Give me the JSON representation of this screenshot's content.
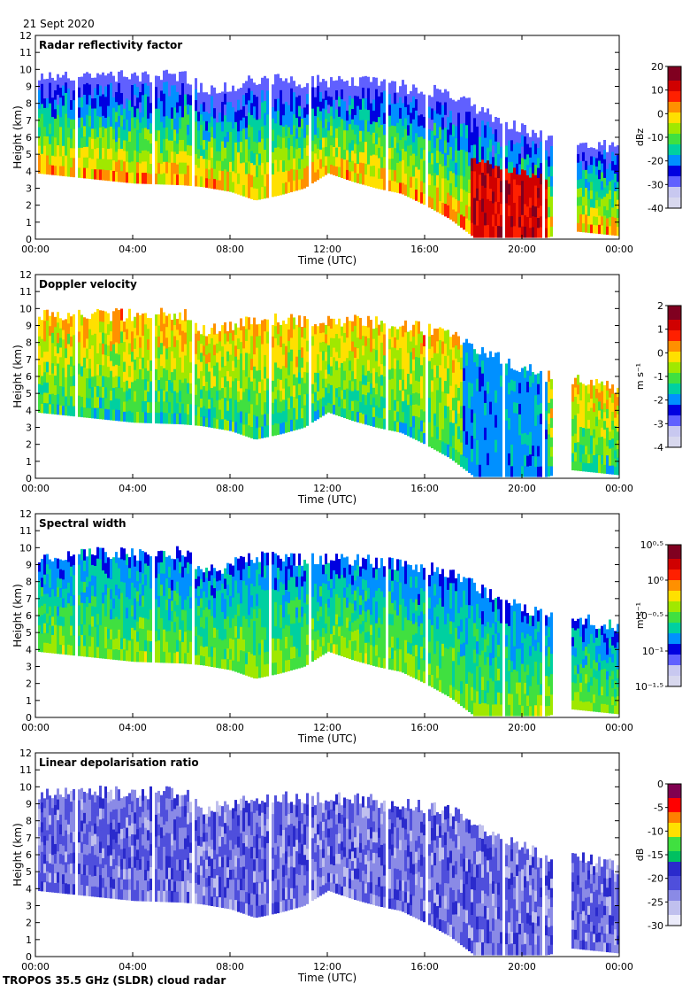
{
  "date": "21 Sept 2020",
  "footer": "TROPOS 35.5 GHz (SLDR) cloud radar",
  "colors": {
    "axis": "#000000",
    "jet": [
      "#d8d8ee",
      "#c8c8f0",
      "#6060ff",
      "#0000e0",
      "#0090ff",
      "#00d0a0",
      "#40e040",
      "#a0e800",
      "#ffe000",
      "#ff9000",
      "#ff2000",
      "#d00000",
      "#800020"
    ],
    "ldr": [
      "#ebebfa",
      "#c0c0ee",
      "#8a8ae6",
      "#4f4fdc",
      "#2a2acc",
      "#00c060",
      "#40e040",
      "#ffe000",
      "#ff8000",
      "#ff0000",
      "#800050"
    ]
  },
  "chart_data": [
    {
      "type": "heatmap",
      "title": "Radar reflectivity factor",
      "xlabel": "Time (UTC)",
      "ylabel": "Height (km)",
      "x_ticks": [
        "00:00",
        "04:00",
        "08:00",
        "12:00",
        "16:00",
        "20:00",
        "00:00"
      ],
      "x_range_hours": [
        0,
        24
      ],
      "y_ticks": [
        "0",
        "1",
        "2",
        "3",
        "4",
        "5",
        "6",
        "7",
        "8",
        "9",
        "10",
        "11",
        "12"
      ],
      "y_range_km": [
        0,
        12
      ],
      "colorbar": {
        "unit": "dBz",
        "ticks": [
          "20",
          "10",
          "0",
          "-10",
          "-20",
          "-30",
          "-40"
        ],
        "range": [
          -40,
          20
        ]
      },
      "cloud_top_km": [
        [
          0,
          9.5
        ],
        [
          2,
          9.7
        ],
        [
          4,
          9.6
        ],
        [
          6,
          9.7
        ],
        [
          7,
          8.6
        ],
        [
          9,
          9.4
        ],
        [
          11,
          9.3
        ],
        [
          13,
          9.3
        ],
        [
          15,
          9.0
        ],
        [
          17,
          8.6
        ],
        [
          18,
          7.8
        ],
        [
          19.5,
          6.8
        ],
        [
          21,
          6.0
        ],
        [
          22.5,
          5.8
        ],
        [
          24,
          5.2
        ]
      ],
      "cloud_base_km": [
        [
          0,
          3.9
        ],
        [
          2,
          3.6
        ],
        [
          4,
          3.3
        ],
        [
          6,
          3.2
        ],
        [
          6.8,
          3.1
        ],
        [
          8,
          2.8
        ],
        [
          9,
          2.3
        ],
        [
          10,
          2.6
        ],
        [
          11,
          3.0
        ],
        [
          12,
          3.9
        ],
        [
          13,
          3.4
        ],
        [
          14,
          3.0
        ],
        [
          15,
          2.7
        ],
        [
          16,
          2.0
        ],
        [
          17,
          1.2
        ],
        [
          18,
          0.1
        ],
        [
          21,
          0.1
        ],
        [
          22,
          0.5
        ],
        [
          24,
          0.2
        ]
      ]
    },
    {
      "type": "heatmap",
      "title": "Doppler velocity",
      "xlabel": "Time (UTC)",
      "ylabel": "Height (km)",
      "x_ticks": [
        "00:00",
        "04:00",
        "08:00",
        "12:00",
        "16:00",
        "20:00",
        "00:00"
      ],
      "x_range_hours": [
        0,
        24
      ],
      "y_ticks": [
        "0",
        "1",
        "2",
        "3",
        "4",
        "5",
        "6",
        "7",
        "8",
        "9",
        "10",
        "11",
        "12"
      ],
      "y_range_km": [
        0,
        12
      ],
      "colorbar": {
        "unit": "m s⁻¹",
        "ticks": [
          "2",
          "1",
          "0",
          "-1",
          "-2",
          "-3",
          "-4"
        ],
        "range": [
          -4,
          2
        ]
      }
    },
    {
      "type": "heatmap",
      "title": "Spectral width",
      "xlabel": "Time (UTC)",
      "ylabel": "Height (km)",
      "x_ticks": [
        "00:00",
        "04:00",
        "08:00",
        "12:00",
        "16:00",
        "20:00",
        "00:00"
      ],
      "x_range_hours": [
        0,
        24
      ],
      "y_ticks": [
        "0",
        "1",
        "2",
        "3",
        "4",
        "5",
        "6",
        "7",
        "8",
        "9",
        "10",
        "11",
        "12"
      ],
      "y_range_km": [
        0,
        12
      ],
      "colorbar": {
        "unit": "m s⁻¹",
        "ticks": [
          "10⁰·⁵",
          "10⁰",
          "10⁻⁰·⁵",
          "10⁻¹",
          "10⁻¹·⁵"
        ],
        "range": [
          -1.5,
          0.5
        ],
        "scale": "log"
      }
    },
    {
      "type": "heatmap",
      "title": "Linear depolarisation ratio",
      "xlabel": "Time (UTC)",
      "ylabel": "Height (km)",
      "x_ticks": [
        "00:00",
        "04:00",
        "08:00",
        "12:00",
        "16:00",
        "20:00",
        "00:00"
      ],
      "x_range_hours": [
        0,
        24
      ],
      "y_ticks": [
        "0",
        "1",
        "2",
        "3",
        "4",
        "5",
        "6",
        "7",
        "8",
        "9",
        "10",
        "11",
        "12"
      ],
      "y_range_km": [
        0,
        12
      ],
      "colorbar": {
        "unit": "dB",
        "ticks": [
          "0",
          "-5",
          "-10",
          "-15",
          "-20",
          "-25",
          "-30"
        ],
        "range": [
          -30,
          0
        ]
      }
    }
  ]
}
